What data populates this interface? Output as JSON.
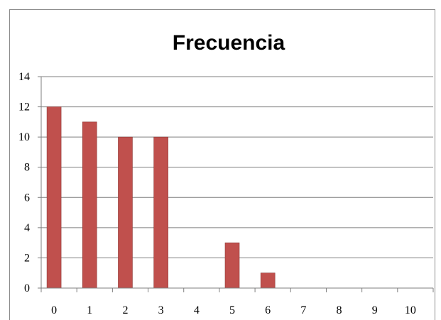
{
  "chart_data": {
    "type": "bar",
    "title": "Frecuencia",
    "categories": [
      "0",
      "1",
      "2",
      "3",
      "4",
      "5",
      "6",
      "7",
      "8",
      "9",
      "10"
    ],
    "values": [
      12,
      11,
      10,
      10,
      0,
      3,
      1,
      0,
      0,
      0,
      0
    ],
    "ylim": [
      0,
      14
    ],
    "yticks": [
      "0",
      "2",
      "4",
      "6",
      "8",
      "10",
      "12",
      "14"
    ],
    "xlabel": "",
    "ylabel": "",
    "grid": true,
    "legend": "none",
    "colors": {
      "bar": "#c0504d",
      "bar_border": "#8e3a37",
      "gridline": "#7f7f7f",
      "axis": "#7f7f7f"
    }
  }
}
